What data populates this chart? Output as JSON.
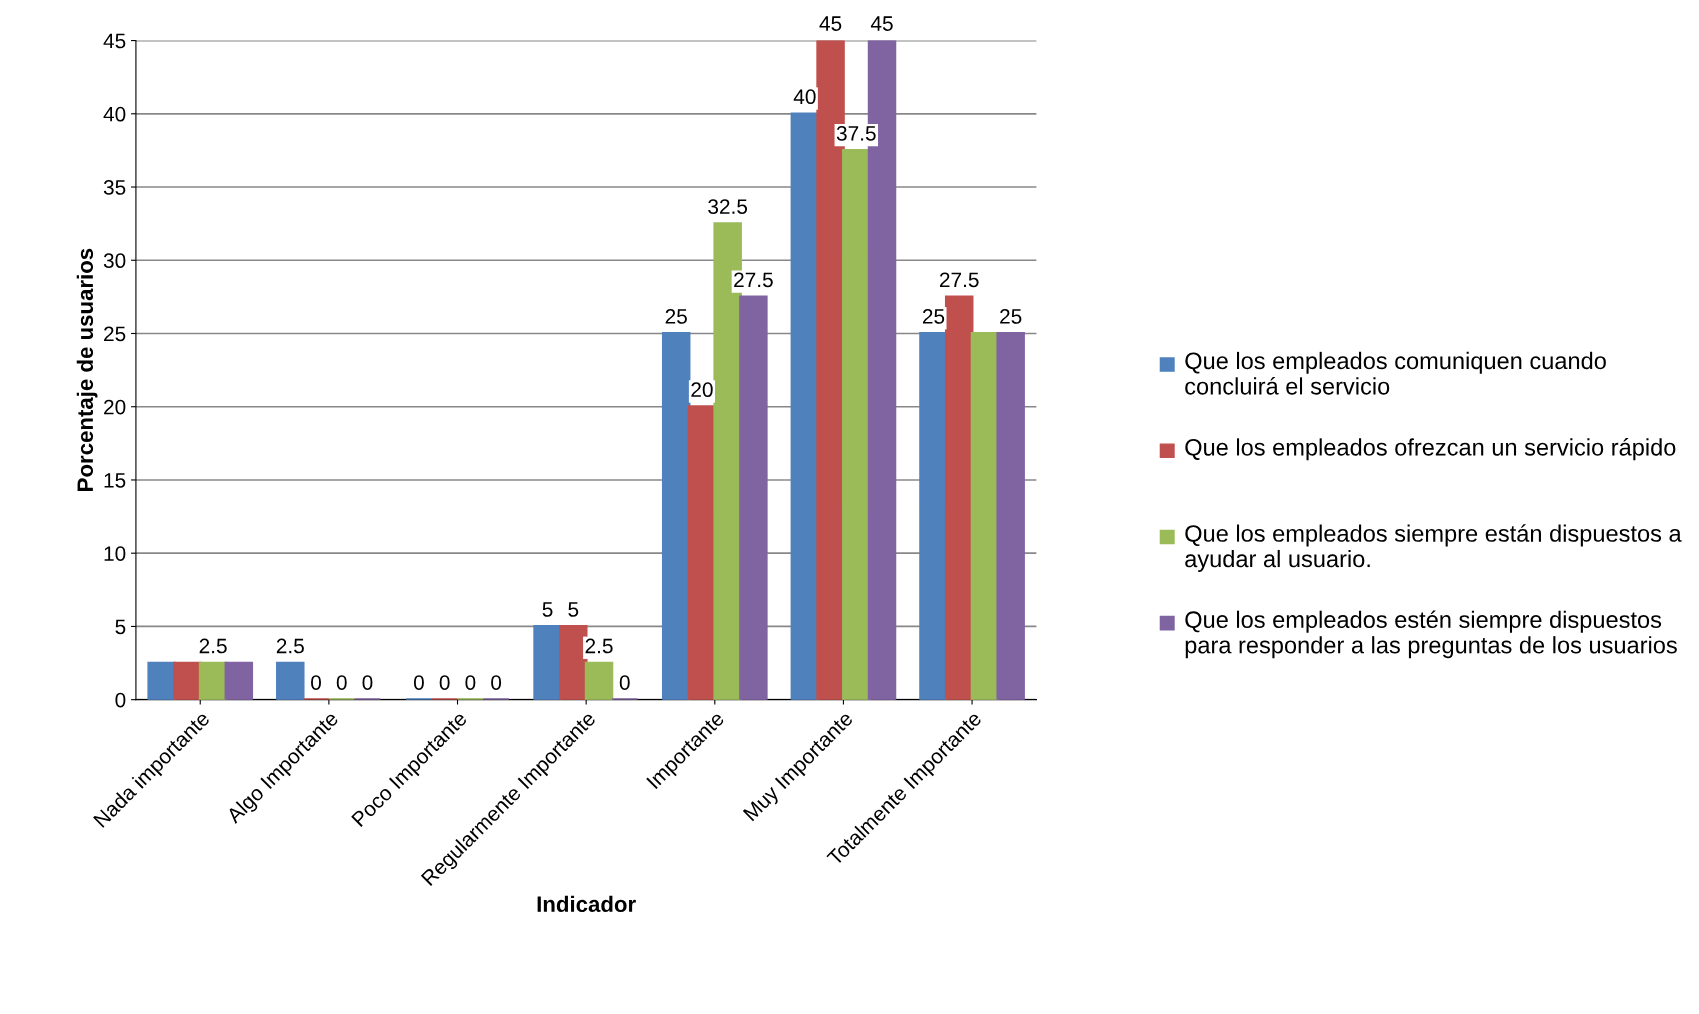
{
  "chart_data": {
    "type": "bar",
    "xlabel": "Indicador",
    "ylabel": "Porcentaje de usuarios",
    "categories": [
      "Nada importante",
      "Algo Importante",
      "Poco Importante",
      "Regularmente Importante",
      "Importante",
      "Muy Importante",
      "Totalmente Importante"
    ],
    "series": [
      {
        "name": "Que los empleados comuniquen cuando concluirá el servicio",
        "color": "#4f81bd",
        "values": [
          2.5,
          2.5,
          0,
          5,
          25,
          40,
          25
        ],
        "value_labels": [
          null,
          "2.5",
          "0",
          "5",
          "25",
          "40",
          "25"
        ]
      },
      {
        "name": "Que los empleados ofrezcan un servicio rápido",
        "color": "#c0504d",
        "values": [
          2.5,
          0,
          0,
          5,
          20,
          45,
          27.5
        ],
        "value_labels": [
          null,
          "0",
          "0",
          "5",
          "20",
          "45",
          "27.5"
        ]
      },
      {
        "name": "Que los empleados siempre están dispuestos a ayudar al usuario.",
        "color": "#9bbb59",
        "values": [
          2.5,
          0,
          0,
          2.5,
          32.5,
          37.5,
          25
        ],
        "value_labels": [
          "2.5",
          "0",
          "0",
          "2.5",
          "32.5",
          "37.5",
          null
        ]
      },
      {
        "name": "Que los empleados estén siempre dispuestos para responder a las preguntas de los usuarios",
        "color": "#8064a2",
        "values": [
          2.5,
          0,
          0,
          0,
          27.5,
          45,
          25
        ],
        "value_labels": [
          null,
          "0",
          "0",
          "0",
          "27.5",
          "45",
          "25"
        ]
      }
    ],
    "ylim": [
      0,
      45
    ],
    "yticks": [
      0,
      5,
      10,
      15,
      20,
      25,
      30,
      35,
      40,
      45
    ],
    "grid": "y",
    "legend": "right"
  }
}
